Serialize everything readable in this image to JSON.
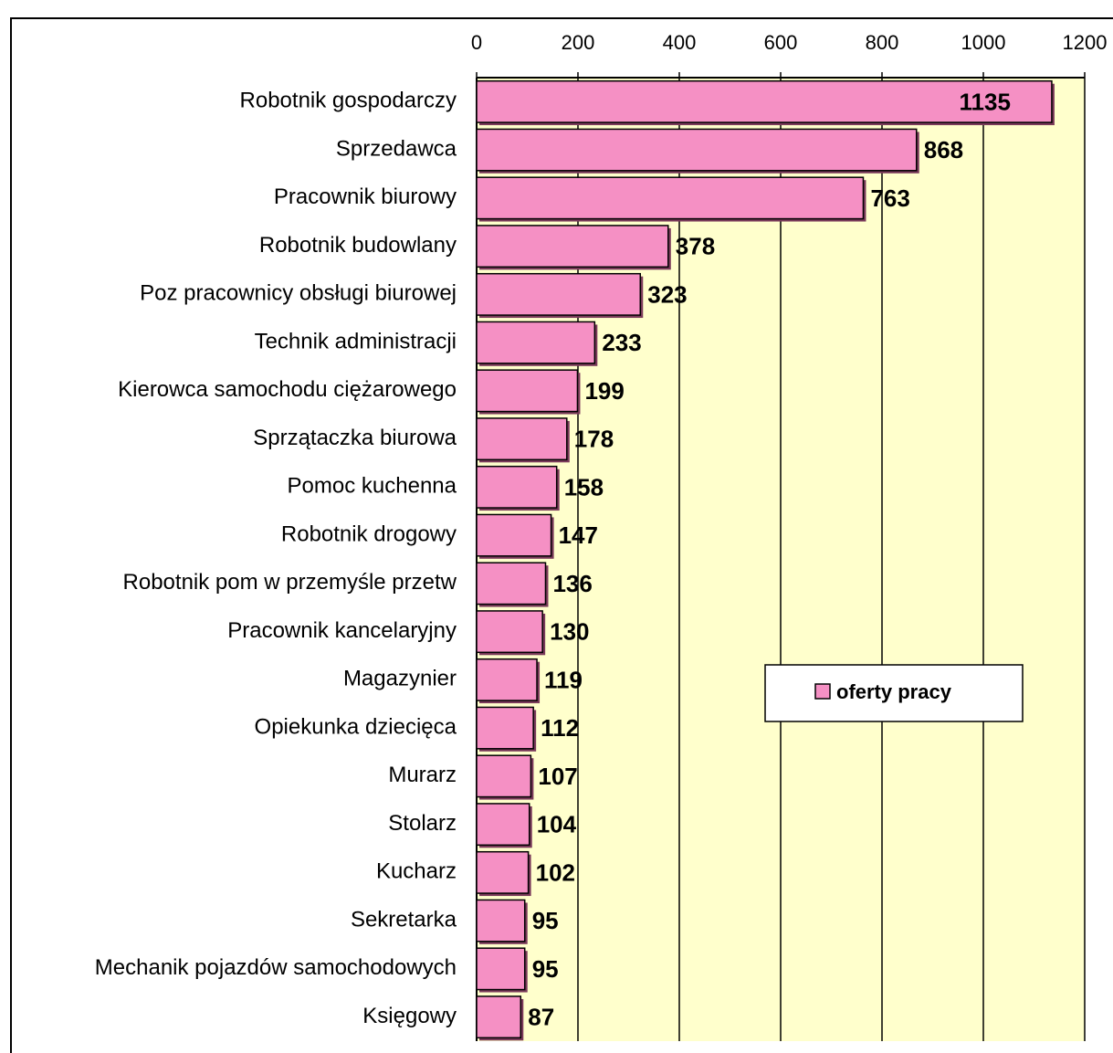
{
  "chart_data": {
    "type": "bar",
    "orientation": "horizontal",
    "categories": [
      "Robotnik gospodarczy",
      "Sprzedawca",
      "Pracownik biurowy",
      "Robotnik budowlany",
      "Poz pracownicy obsługi biurowej",
      "Technik administracji",
      "Kierowca samochodu ciężarowego",
      "Sprzątaczka biurowa",
      "Pomoc kuchenna",
      "Robotnik drogowy",
      "Robotnik pom w przemyśle przetw",
      "Pracownik kancelaryjny",
      "Magazynier",
      "Opiekunka dziecięca",
      "Murarz",
      "Stolarz",
      "Kucharz",
      "Sekretarka",
      "Mechanik pojazdów samochodowych",
      "Księgowy"
    ],
    "series": [
      {
        "name": "oferty pracy",
        "color": "#f590c4",
        "values": [
          1135,
          868,
          763,
          378,
          323,
          233,
          199,
          178,
          158,
          147,
          136,
          130,
          119,
          112,
          107,
          104,
          102,
          95,
          95,
          87
        ]
      }
    ],
    "xlim": [
      0,
      1200
    ],
    "xticks": [
      0,
      200,
      400,
      600,
      800,
      1000,
      1200
    ],
    "grid": true,
    "legend": "center-right",
    "plot_background": "#ffffcc"
  }
}
